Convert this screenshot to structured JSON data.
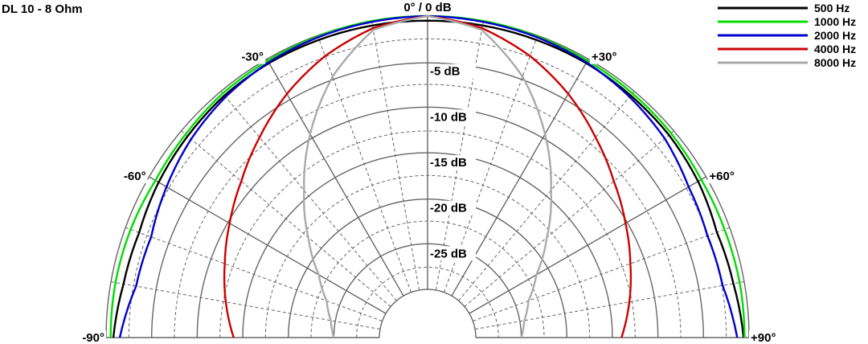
{
  "chart_data": {
    "type": "line",
    "subtype": "polar-half",
    "title": "DL 10 - 8 Ohm",
    "center_label": "0° / 0 dB",
    "angle_ticks": [
      {
        "angle": -90,
        "label": "-90°"
      },
      {
        "angle": -60,
        "label": "-60°"
      },
      {
        "angle": -30,
        "label": "-30°"
      },
      {
        "angle": 30,
        "label": "+30°"
      },
      {
        "angle": 60,
        "label": "+60°"
      },
      {
        "angle": 90,
        "label": "+90°"
      }
    ],
    "radial_ticks": [
      {
        "db": -5,
        "label": "-5 dB"
      },
      {
        "db": -10,
        "label": "-10 dB"
      },
      {
        "db": -15,
        "label": "-15 dB"
      },
      {
        "db": -20,
        "label": "-20 dB"
      },
      {
        "db": -25,
        "label": "-25 dB"
      }
    ],
    "db_range": [
      -30,
      0
    ],
    "angle_range": [
      -90,
      90
    ],
    "grid": true,
    "legend_position": "top-right",
    "angles": [
      -90,
      -80,
      -70,
      -60,
      -50,
      -40,
      -30,
      -20,
      -10,
      0,
      10,
      20,
      30,
      40,
      50,
      60,
      70,
      80,
      90
    ],
    "series": [
      {
        "name": "500 Hz",
        "color": "#000000",
        "values": [
          -0.8,
          -1.4,
          -1.6,
          -1.2,
          -0.9,
          -0.6,
          -0.5,
          -0.5,
          -0.5,
          -0.5,
          -0.5,
          -0.5,
          -0.5,
          -0.6,
          -0.7,
          -1.0,
          -1.5,
          -1.2,
          -0.6
        ]
      },
      {
        "name": "1000 Hz",
        "color": "#00dd00",
        "values": [
          -0.5,
          -0.5,
          -0.6,
          -0.8,
          -0.6,
          -0.3,
          -0.2,
          -0.1,
          0.0,
          0.0,
          0.0,
          -0.1,
          -0.2,
          -0.3,
          -0.4,
          -0.6,
          -0.6,
          -0.5,
          -0.5
        ]
      },
      {
        "name": "2000 Hz",
        "color": "#0000cc",
        "values": [
          -1.5,
          -2.8,
          -3.0,
          -2.2,
          -1.4,
          -0.8,
          -0.4,
          -0.2,
          -0.1,
          0.0,
          -0.1,
          -0.2,
          -0.4,
          -0.8,
          -1.3,
          -2.2,
          -2.6,
          -2.4,
          -1.3
        ]
      },
      {
        "name": "4000 Hz",
        "color": "#cc0000",
        "values": [
          -14.0,
          -12.8,
          -11.6,
          -10.2,
          -8.6,
          -6.6,
          -4.4,
          -2.4,
          -0.8,
          0.0,
          -0.8,
          -2.4,
          -4.4,
          -6.6,
          -8.6,
          -10.2,
          -11.6,
          -12.8,
          -14.0
        ]
      },
      {
        "name": "8000 Hz",
        "color": "#aaaaaa",
        "values": [
          -25.0,
          -24.5,
          -23.5,
          -21.5,
          -18.2,
          -14.2,
          -9.5,
          -4.8,
          -1.0,
          0.0,
          -1.0,
          -4.8,
          -9.5,
          -14.2,
          -18.2,
          -21.5,
          -23.5,
          -24.5,
          -25.0
        ]
      }
    ]
  }
}
